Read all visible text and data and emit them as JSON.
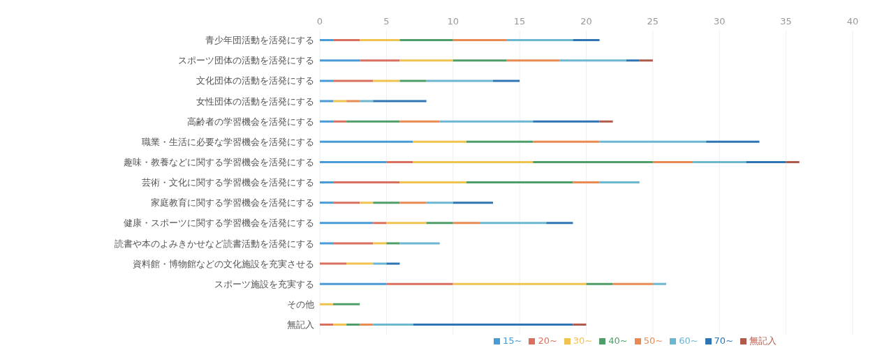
{
  "chart_data": {
    "type": "bar",
    "orientation": "horizontal",
    "stacked": true,
    "categories": [
      "青少年団活動を活発にする",
      "スポーツ団体の活動を活発にする",
      "文化団体の活動を活発にする",
      "女性団体の活動を活発にする",
      "高齢者の学習機会を活発にする",
      "職業・生活に必要な学習機会を活発にする",
      "趣味・教養などに関する学習機会を活発にする",
      "芸術・文化に関する学習機会を活発にする",
      "家庭教育に関する学習機会を活発にする",
      "健康・スポーツに関する学習機会を活発にする",
      "読書や本のよみきかせなど読書活動を活発にする",
      "資料館・博物館などの文化施設を充実させる",
      "スポーツ施設を充実する",
      "その他",
      "無記入"
    ],
    "series": [
      {
        "name": "15~",
        "color": "#4a9ad6",
        "values": [
          1,
          3,
          1,
          1,
          1,
          7,
          5,
          1,
          1,
          4,
          1,
          0,
          5,
          0,
          0
        ]
      },
      {
        "name": "20~",
        "color": "#d9705f",
        "values": [
          2,
          3,
          3,
          0,
          1,
          0,
          2,
          5,
          2,
          1,
          3,
          2,
          5,
          0,
          1
        ]
      },
      {
        "name": "30~",
        "color": "#f0c24f",
        "values": [
          3,
          4,
          2,
          1,
          0,
          4,
          9,
          5,
          1,
          3,
          1,
          2,
          10,
          1,
          1
        ]
      },
      {
        "name": "40~",
        "color": "#4f9e6a",
        "values": [
          4,
          4,
          2,
          0,
          4,
          5,
          9,
          8,
          2,
          2,
          1,
          0,
          2,
          2,
          1
        ]
      },
      {
        "name": "50~",
        "color": "#e98a52",
        "values": [
          4,
          4,
          0,
          1,
          3,
          5,
          3,
          2,
          2,
          2,
          0,
          0,
          3,
          0,
          1
        ]
      },
      {
        "name": "60~",
        "color": "#6cb6cf",
        "values": [
          5,
          5,
          5,
          1,
          7,
          8,
          4,
          3,
          2,
          5,
          3,
          1,
          1,
          0,
          3
        ]
      },
      {
        "name": "70~",
        "color": "#2f75b3",
        "values": [
          2,
          1,
          2,
          4,
          5,
          4,
          3,
          0,
          3,
          2,
          0,
          1,
          0,
          0,
          12
        ]
      },
      {
        "name": "無記入",
        "color": "#b05a4b",
        "values": [
          0,
          1,
          0,
          0,
          1,
          0,
          1,
          0,
          0,
          0,
          0,
          0,
          0,
          0,
          1
        ]
      }
    ],
    "xlim": [
      0,
      40
    ],
    "xticks": [
      0,
      5,
      10,
      15,
      20,
      25,
      30,
      35,
      40
    ],
    "grid": "x",
    "legend": "bottom"
  }
}
